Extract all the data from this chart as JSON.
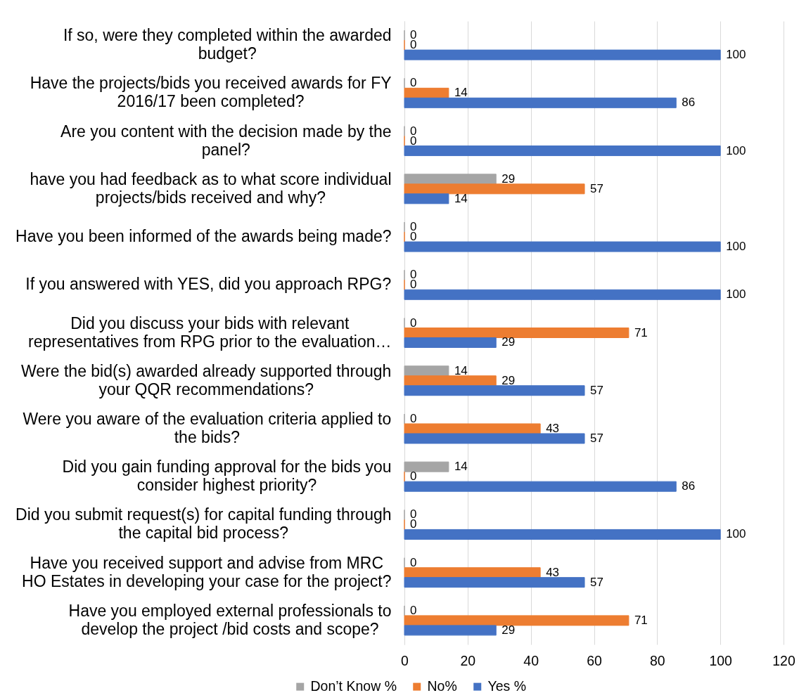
{
  "chart_data": {
    "type": "bar",
    "orientation": "horizontal",
    "categories": [
      "If so, were they completed within the awarded budget?",
      "Have the projects/bids you received awards for FY 2016/17 been completed?",
      "Are you content with the decision made by the panel?",
      "have you had feedback as to what score individual projects/bids received and why?",
      "Have you been informed of the awards being made?",
      "If you answered with YES, did you approach RPG?",
      "Did you discuss your bids with relevant representatives from RPG prior to the evaluation…",
      "Were the bid(s) awarded already supported through your QQR recommendations?",
      "Were you aware of the evaluation criteria applied to the bids?",
      "Did you gain funding approval for the bids you consider highest priority?",
      "Did you submit request(s) for capital funding through the capital bid process?",
      "Have you received support and advise from MRC HO Estates in developing your case for the project?",
      "Have you employed external professionals to develop the project /bid costs and scope?"
    ],
    "series": [
      {
        "name": "Don’t Know %",
        "color": "#a5a5a5",
        "values": [
          0,
          0,
          0,
          29,
          0,
          0,
          0,
          14,
          0,
          14,
          0,
          0,
          0
        ]
      },
      {
        "name": "No%",
        "color": "#ed7d31",
        "values": [
          0,
          14,
          0,
          57,
          0,
          0,
          71,
          29,
          43,
          0,
          0,
          43,
          71
        ]
      },
      {
        "name": "Yes %",
        "color": "#4472c4",
        "values": [
          100,
          86,
          100,
          14,
          100,
          100,
          29,
          57,
          57,
          86,
          100,
          57,
          29
        ]
      }
    ],
    "xlim": [
      0,
      120
    ],
    "xticks": [
      0,
      20,
      40,
      60,
      80,
      100,
      120
    ],
    "grid": "x",
    "legend": "bottom",
    "data_labels": true
  }
}
